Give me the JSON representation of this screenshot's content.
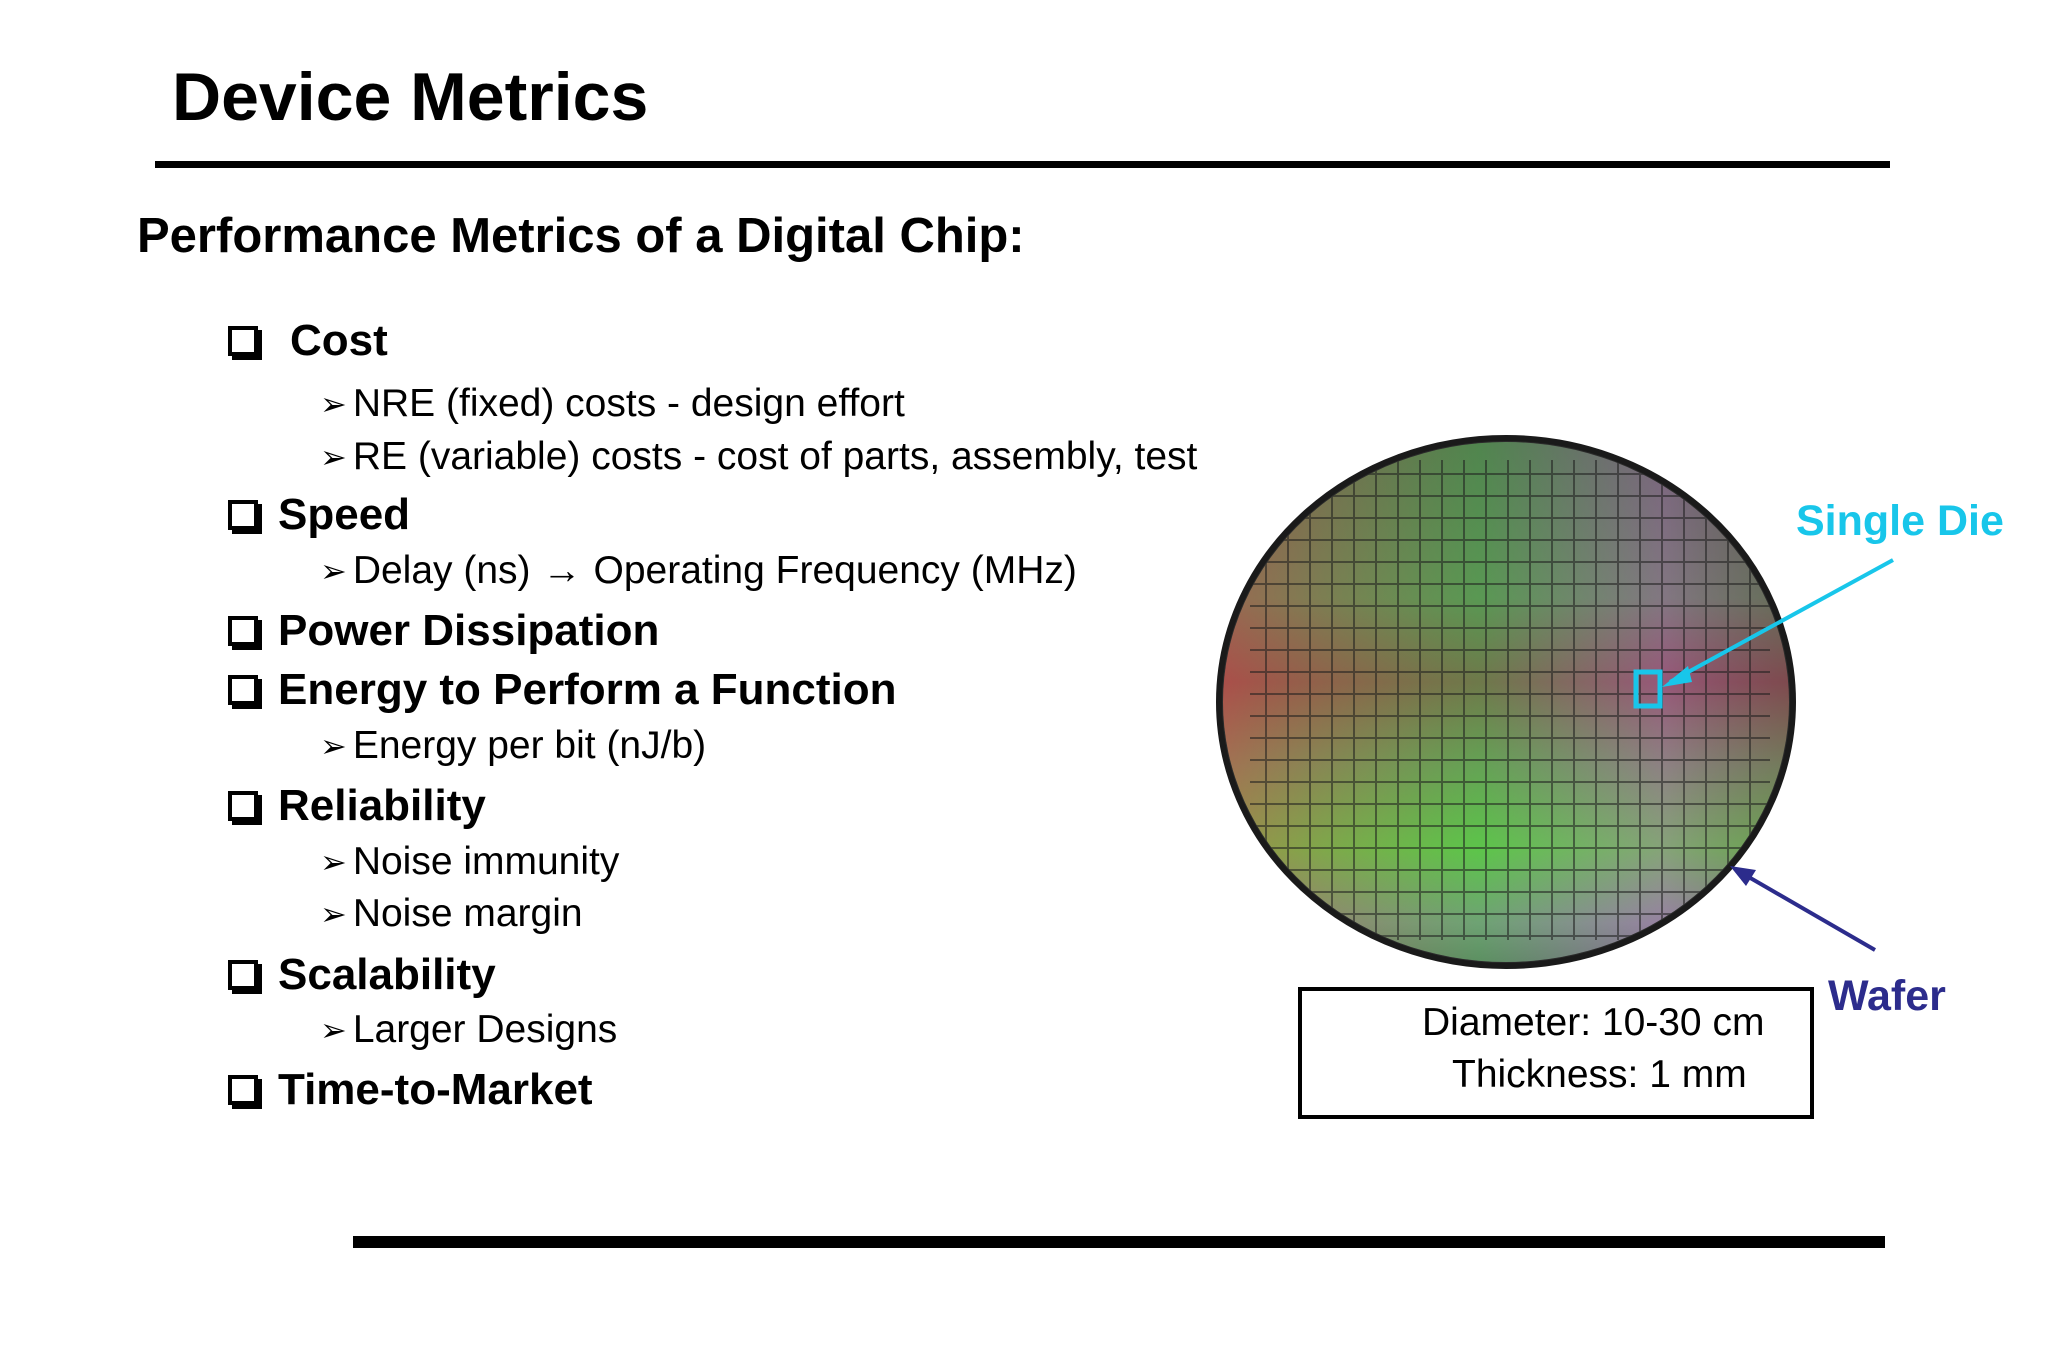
{
  "slide": {
    "title": "Device Metrics",
    "subtitle": "Performance Metrics of a Digital Chip:"
  },
  "metrics": [
    {
      "label": "Cost",
      "sub": [
        "NRE (fixed) costs - design effort",
        "RE (variable) costs - cost of parts, assembly, test"
      ]
    },
    {
      "label": "Speed",
      "sub_delay": "Delay (ns)",
      "sub_arrow": "→",
      "sub_freq": "Operating Frequency (MHz)"
    },
    {
      "label": "Power Dissipation"
    },
    {
      "label": "Energy to Perform a Function",
      "sub": [
        "Energy per bit (nJ/b)"
      ]
    },
    {
      "label": "Reliability",
      "sub": [
        "Noise immunity",
        "Noise margin"
      ]
    },
    {
      "label": "Scalability",
      "sub": [
        "Larger Designs"
      ]
    },
    {
      "label": "Time-to-Market"
    }
  ],
  "figure": {
    "single_die_label": "Single Die",
    "wafer_label": "Wafer",
    "diameter": "Diameter: 10-30 cm",
    "thickness": "Thickness: 1 mm",
    "colors": {
      "single_die": "#18c6ea",
      "wafer": "#2c2c8c"
    }
  }
}
